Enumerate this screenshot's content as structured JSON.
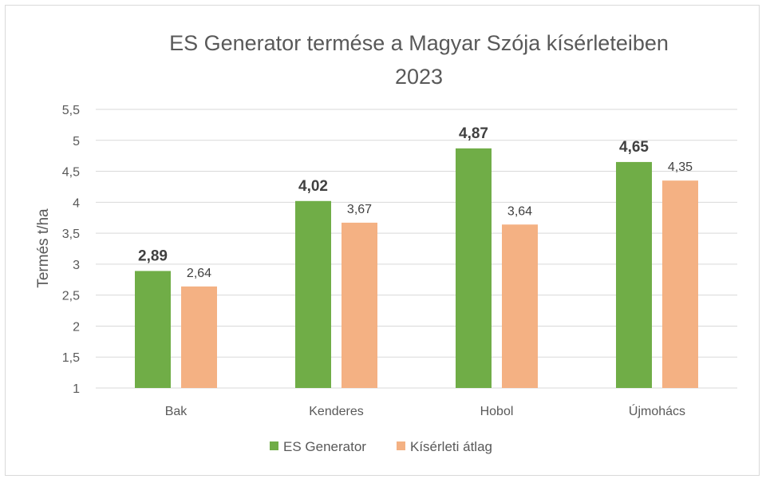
{
  "chart_data": {
    "type": "bar",
    "title_line1": "ES Generator termése a Magyar Szója kísérleteiben",
    "title_line2": "2023",
    "ylabel": "Termés t/ha",
    "xlabel": "",
    "ylim": [
      1,
      5.5
    ],
    "yticks": [
      "1",
      "1,5",
      "2",
      "2,5",
      "3",
      "3,5",
      "4",
      "4,5",
      "5",
      "5,5"
    ],
    "ytick_values": [
      1,
      1.5,
      2,
      2.5,
      3,
      3.5,
      4,
      4.5,
      5,
      5.5
    ],
    "grid": true,
    "legend_position": "bottom",
    "categories": [
      "Bak",
      "Kenderes",
      "Hobol",
      "Újmohács"
    ],
    "series": [
      {
        "name": "ES Generator",
        "color": "#70ad47",
        "values": [
          2.89,
          4.02,
          4.87,
          4.65
        ],
        "labels": [
          "2,89",
          "4,02",
          "4,87",
          "4,65"
        ],
        "label_bold": true
      },
      {
        "name": "Kísérleti átlag",
        "color": "#f4b183",
        "values": [
          2.64,
          3.67,
          3.64,
          4.35
        ],
        "labels": [
          "2,64",
          "3,67",
          "3,64",
          "4,35"
        ],
        "label_bold": false
      }
    ]
  }
}
